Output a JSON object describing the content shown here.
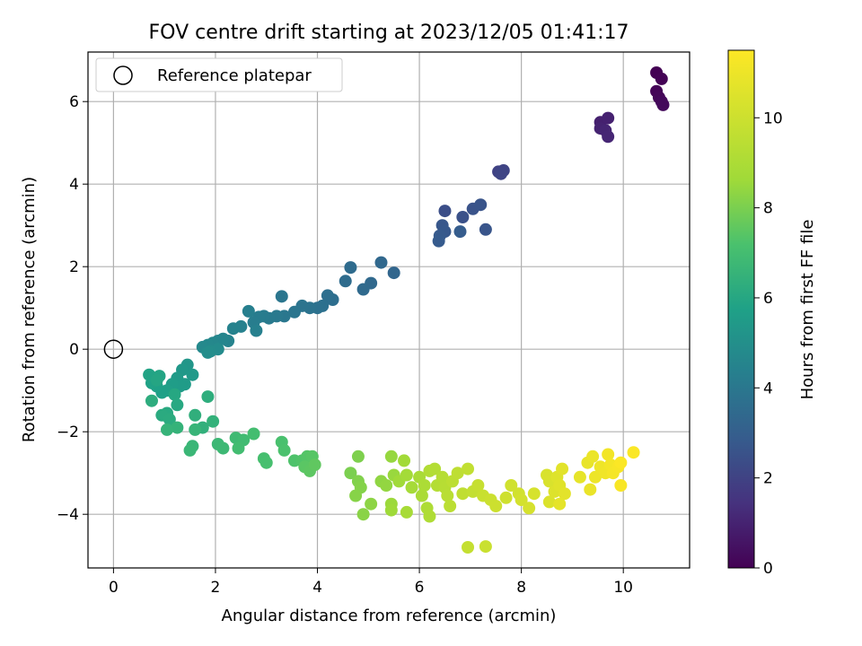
{
  "chart_data": {
    "type": "scatter",
    "title": "FOV centre drift starting at 2023/12/05 01:41:17",
    "xlabel": "Angular distance from reference (arcmin)",
    "ylabel": "Rotation from reference (arcmin)",
    "xlim": [
      -0.5,
      11.3
    ],
    "ylim": [
      -5.3,
      7.2
    ],
    "xticks": [
      0,
      2,
      4,
      6,
      8,
      10
    ],
    "yticks": [
      -4,
      -2,
      0,
      2,
      4,
      6
    ],
    "grid": true,
    "legend": {
      "placement": "top-left",
      "entries": [
        "Reference platepar"
      ]
    },
    "reference_point": {
      "x": 0,
      "y": 0,
      "label": "Reference platepar"
    },
    "colorbar": {
      "label": "Hours from first FF file",
      "colormap": "viridis",
      "range": [
        0,
        11.5
      ],
      "ticks": [
        0,
        2,
        4,
        6,
        8,
        10
      ]
    },
    "series": [
      {
        "points": [
          {
            "x": 10.65,
            "y": 6.7,
            "h": 0.0
          },
          {
            "x": 10.75,
            "y": 6.55,
            "h": 0.05
          },
          {
            "x": 10.65,
            "y": 6.25,
            "h": 0.1
          },
          {
            "x": 10.7,
            "y": 6.1,
            "h": 0.15
          },
          {
            "x": 10.75,
            "y": 6.0,
            "h": 0.2
          },
          {
            "x": 10.78,
            "y": 5.92,
            "h": 0.25
          },
          {
            "x": 9.55,
            "y": 5.5,
            "h": 0.9
          },
          {
            "x": 9.7,
            "y": 5.6,
            "h": 0.95
          },
          {
            "x": 9.55,
            "y": 5.35,
            "h": 1.0
          },
          {
            "x": 9.65,
            "y": 5.3,
            "h": 1.05
          },
          {
            "x": 9.7,
            "y": 5.15,
            "h": 1.1
          },
          {
            "x": 7.55,
            "y": 4.3,
            "h": 2.0
          },
          {
            "x": 7.65,
            "y": 4.33,
            "h": 2.05
          },
          {
            "x": 7.6,
            "y": 4.25,
            "h": 2.1
          },
          {
            "x": 6.5,
            "y": 3.35,
            "h": 2.4
          },
          {
            "x": 6.85,
            "y": 3.2,
            "h": 2.5
          },
          {
            "x": 7.05,
            "y": 3.4,
            "h": 2.55
          },
          {
            "x": 7.2,
            "y": 3.5,
            "h": 2.6
          },
          {
            "x": 7.3,
            "y": 2.9,
            "h": 2.65
          },
          {
            "x": 6.45,
            "y": 3.0,
            "h": 2.7
          },
          {
            "x": 6.5,
            "y": 2.85,
            "h": 2.75
          },
          {
            "x": 6.4,
            "y": 2.75,
            "h": 2.8
          },
          {
            "x": 6.38,
            "y": 2.62,
            "h": 2.85
          },
          {
            "x": 6.8,
            "y": 2.85,
            "h": 2.9
          },
          {
            "x": 5.5,
            "y": 1.85,
            "h": 3.3
          },
          {
            "x": 5.25,
            "y": 2.1,
            "h": 3.35
          },
          {
            "x": 5.05,
            "y": 1.6,
            "h": 3.4
          },
          {
            "x": 4.9,
            "y": 1.45,
            "h": 3.45
          },
          {
            "x": 4.65,
            "y": 1.98,
            "h": 3.5
          },
          {
            "x": 4.55,
            "y": 1.65,
            "h": 3.55
          },
          {
            "x": 4.3,
            "y": 1.2,
            "h": 3.6
          },
          {
            "x": 4.2,
            "y": 1.3,
            "h": 3.65
          },
          {
            "x": 4.1,
            "y": 1.05,
            "h": 3.7
          },
          {
            "x": 4.0,
            "y": 1.0,
            "h": 3.75
          },
          {
            "x": 3.85,
            "y": 1.0,
            "h": 3.8
          },
          {
            "x": 3.7,
            "y": 1.05,
            "h": 3.85
          },
          {
            "x": 3.55,
            "y": 0.9,
            "h": 3.9
          },
          {
            "x": 3.3,
            "y": 1.28,
            "h": 3.95
          },
          {
            "x": 3.35,
            "y": 0.8,
            "h": 4.0
          },
          {
            "x": 3.2,
            "y": 0.8,
            "h": 4.05
          },
          {
            "x": 3.05,
            "y": 0.75,
            "h": 4.1
          },
          {
            "x": 2.95,
            "y": 0.8,
            "h": 4.15
          },
          {
            "x": 2.85,
            "y": 0.78,
            "h": 4.2
          },
          {
            "x": 2.75,
            "y": 0.65,
            "h": 4.25
          },
          {
            "x": 2.65,
            "y": 0.92,
            "h": 4.3
          },
          {
            "x": 2.8,
            "y": 0.45,
            "h": 4.35
          },
          {
            "x": 2.5,
            "y": 0.55,
            "h": 4.4
          },
          {
            "x": 2.35,
            "y": 0.5,
            "h": 4.45
          },
          {
            "x": 2.25,
            "y": 0.2,
            "h": 4.5
          },
          {
            "x": 2.15,
            "y": 0.25,
            "h": 4.55
          },
          {
            "x": 2.05,
            "y": 0.2,
            "h": 4.6
          },
          {
            "x": 1.95,
            "y": 0.15,
            "h": 4.65
          },
          {
            "x": 1.85,
            "y": 0.1,
            "h": 4.7
          },
          {
            "x": 1.75,
            "y": 0.05,
            "h": 4.75
          },
          {
            "x": 2.05,
            "y": 0.0,
            "h": 4.8
          },
          {
            "x": 1.9,
            "y": -0.05,
            "h": 4.85
          },
          {
            "x": 1.85,
            "y": -0.08,
            "h": 4.9
          },
          {
            "x": 1.45,
            "y": -0.38,
            "h": 5.3
          },
          {
            "x": 1.35,
            "y": -0.5,
            "h": 5.35
          },
          {
            "x": 1.55,
            "y": -0.62,
            "h": 5.4
          },
          {
            "x": 1.25,
            "y": -0.7,
            "h": 5.45
          },
          {
            "x": 1.4,
            "y": -0.85,
            "h": 5.5
          },
          {
            "x": 1.3,
            "y": -0.9,
            "h": 5.55
          },
          {
            "x": 1.15,
            "y": -0.85,
            "h": 5.6
          },
          {
            "x": 1.05,
            "y": -1.0,
            "h": 5.65
          },
          {
            "x": 0.95,
            "y": -1.05,
            "h": 5.7
          },
          {
            "x": 0.85,
            "y": -0.9,
            "h": 5.75
          },
          {
            "x": 0.75,
            "y": -0.82,
            "h": 5.8
          },
          {
            "x": 0.7,
            "y": -0.62,
            "h": 5.85
          },
          {
            "x": 0.9,
            "y": -0.65,
            "h": 5.9
          },
          {
            "x": 0.85,
            "y": -0.75,
            "h": 5.95
          },
          {
            "x": 1.2,
            "y": -1.1,
            "h": 6.0
          },
          {
            "x": 1.25,
            "y": -1.35,
            "h": 6.05
          },
          {
            "x": 1.05,
            "y": -1.55,
            "h": 6.1
          },
          {
            "x": 0.95,
            "y": -1.6,
            "h": 6.15
          },
          {
            "x": 1.1,
            "y": -1.7,
            "h": 6.2
          },
          {
            "x": 0.75,
            "y": -1.25,
            "h": 6.25
          },
          {
            "x": 1.85,
            "y": -1.15,
            "h": 6.3
          },
          {
            "x": 1.6,
            "y": -1.6,
            "h": 6.35
          },
          {
            "x": 1.75,
            "y": -1.9,
            "h": 6.4
          },
          {
            "x": 1.95,
            "y": -1.75,
            "h": 6.45
          },
          {
            "x": 1.25,
            "y": -1.9,
            "h": 6.5
          },
          {
            "x": 1.05,
            "y": -1.95,
            "h": 6.55
          },
          {
            "x": 1.6,
            "y": -1.95,
            "h": 6.6
          },
          {
            "x": 1.55,
            "y": -2.35,
            "h": 6.65
          },
          {
            "x": 1.5,
            "y": -2.45,
            "h": 6.7
          },
          {
            "x": 2.05,
            "y": -2.3,
            "h": 6.75
          },
          {
            "x": 2.15,
            "y": -2.4,
            "h": 6.8
          },
          {
            "x": 2.4,
            "y": -2.15,
            "h": 6.85
          },
          {
            "x": 2.55,
            "y": -2.2,
            "h": 6.9
          },
          {
            "x": 2.45,
            "y": -2.4,
            "h": 6.95
          },
          {
            "x": 2.75,
            "y": -2.05,
            "h": 7.0
          },
          {
            "x": 2.95,
            "y": -2.65,
            "h": 7.05
          },
          {
            "x": 3.0,
            "y": -2.75,
            "h": 7.1
          },
          {
            "x": 3.3,
            "y": -2.25,
            "h": 7.15
          },
          {
            "x": 3.35,
            "y": -2.45,
            "h": 7.2
          },
          {
            "x": 3.55,
            "y": -2.7,
            "h": 7.25
          },
          {
            "x": 3.7,
            "y": -2.7,
            "h": 7.3
          },
          {
            "x": 3.8,
            "y": -2.6,
            "h": 7.35
          },
          {
            "x": 3.9,
            "y": -2.6,
            "h": 7.4
          },
          {
            "x": 3.75,
            "y": -2.85,
            "h": 7.45
          },
          {
            "x": 3.85,
            "y": -2.95,
            "h": 7.5
          },
          {
            "x": 3.95,
            "y": -2.8,
            "h": 7.55
          },
          {
            "x": 4.65,
            "y": -3.0,
            "h": 8.0
          },
          {
            "x": 4.8,
            "y": -2.6,
            "h": 8.05
          },
          {
            "x": 4.8,
            "y": -3.2,
            "h": 8.1
          },
          {
            "x": 4.85,
            "y": -3.35,
            "h": 8.15
          },
          {
            "x": 4.75,
            "y": -3.55,
            "h": 8.2
          },
          {
            "x": 4.9,
            "y": -4.0,
            "h": 8.25
          },
          {
            "x": 5.05,
            "y": -3.75,
            "h": 8.3
          },
          {
            "x": 5.25,
            "y": -3.2,
            "h": 8.35
          },
          {
            "x": 5.35,
            "y": -3.3,
            "h": 8.4
          },
          {
            "x": 5.45,
            "y": -2.6,
            "h": 8.45
          },
          {
            "x": 5.5,
            "y": -3.05,
            "h": 8.5
          },
          {
            "x": 5.45,
            "y": -3.75,
            "h": 8.55
          },
          {
            "x": 5.45,
            "y": -3.9,
            "h": 8.6
          },
          {
            "x": 5.6,
            "y": -3.2,
            "h": 8.65
          },
          {
            "x": 5.7,
            "y": -2.7,
            "h": 8.7
          },
          {
            "x": 5.75,
            "y": -3.05,
            "h": 8.75
          },
          {
            "x": 5.85,
            "y": -3.35,
            "h": 8.8
          },
          {
            "x": 5.75,
            "y": -3.95,
            "h": 8.85
          },
          {
            "x": 6.0,
            "y": -3.1,
            "h": 8.9
          },
          {
            "x": 6.05,
            "y": -3.55,
            "h": 8.95
          },
          {
            "x": 6.1,
            "y": -3.3,
            "h": 9.0
          },
          {
            "x": 6.15,
            "y": -3.85,
            "h": 9.05
          },
          {
            "x": 6.2,
            "y": -4.05,
            "h": 9.1
          },
          {
            "x": 6.2,
            "y": -2.95,
            "h": 9.15
          },
          {
            "x": 6.3,
            "y": -2.9,
            "h": 9.2
          },
          {
            "x": 6.35,
            "y": -3.3,
            "h": 9.25
          },
          {
            "x": 6.45,
            "y": -3.1,
            "h": 9.3
          },
          {
            "x": 6.5,
            "y": -3.35,
            "h": 9.35
          },
          {
            "x": 6.55,
            "y": -3.55,
            "h": 9.4
          },
          {
            "x": 6.6,
            "y": -3.8,
            "h": 9.45
          },
          {
            "x": 6.65,
            "y": -3.2,
            "h": 9.5
          },
          {
            "x": 6.75,
            "y": -3.0,
            "h": 9.55
          },
          {
            "x": 6.85,
            "y": -3.5,
            "h": 9.6
          },
          {
            "x": 6.95,
            "y": -2.9,
            "h": 9.65
          },
          {
            "x": 7.05,
            "y": -3.45,
            "h": 9.7
          },
          {
            "x": 6.95,
            "y": -4.8,
            "h": 9.75
          },
          {
            "x": 7.15,
            "y": -3.3,
            "h": 9.8
          },
          {
            "x": 7.25,
            "y": -3.55,
            "h": 9.85
          },
          {
            "x": 7.3,
            "y": -4.78,
            "h": 9.9
          },
          {
            "x": 7.4,
            "y": -3.65,
            "h": 9.95
          },
          {
            "x": 7.5,
            "y": -3.8,
            "h": 10.0
          },
          {
            "x": 7.7,
            "y": -3.6,
            "h": 10.05
          },
          {
            "x": 7.8,
            "y": -3.3,
            "h": 10.1
          },
          {
            "x": 7.95,
            "y": -3.5,
            "h": 10.15
          },
          {
            "x": 8.0,
            "y": -3.65,
            "h": 10.2
          },
          {
            "x": 8.15,
            "y": -3.85,
            "h": 10.25
          },
          {
            "x": 8.25,
            "y": -3.5,
            "h": 10.3
          },
          {
            "x": 8.5,
            "y": -3.05,
            "h": 10.35
          },
          {
            "x": 8.55,
            "y": -3.2,
            "h": 10.4
          },
          {
            "x": 8.55,
            "y": -3.7,
            "h": 10.45
          },
          {
            "x": 8.65,
            "y": -3.45,
            "h": 10.5
          },
          {
            "x": 8.7,
            "y": -3.1,
            "h": 10.55
          },
          {
            "x": 8.75,
            "y": -3.3,
            "h": 10.6
          },
          {
            "x": 8.8,
            "y": -2.9,
            "h": 10.65
          },
          {
            "x": 8.85,
            "y": -3.5,
            "h": 10.7
          },
          {
            "x": 8.75,
            "y": -3.75,
            "h": 10.75
          },
          {
            "x": 9.15,
            "y": -3.1,
            "h": 10.8
          },
          {
            "x": 9.3,
            "y": -2.75,
            "h": 10.85
          },
          {
            "x": 9.35,
            "y": -3.4,
            "h": 10.9
          },
          {
            "x": 9.4,
            "y": -2.6,
            "h": 10.95
          },
          {
            "x": 9.45,
            "y": -3.1,
            "h": 11.0
          },
          {
            "x": 9.55,
            "y": -2.85,
            "h": 11.05
          },
          {
            "x": 9.65,
            "y": -3.0,
            "h": 11.1
          },
          {
            "x": 9.7,
            "y": -2.55,
            "h": 11.15
          },
          {
            "x": 9.75,
            "y": -2.8,
            "h": 11.2
          },
          {
            "x": 9.8,
            "y": -3.0,
            "h": 11.25
          },
          {
            "x": 9.9,
            "y": -2.85,
            "h": 11.3
          },
          {
            "x": 9.95,
            "y": -3.3,
            "h": 11.35
          },
          {
            "x": 10.2,
            "y": -2.5,
            "h": 11.4
          },
          {
            "x": 9.95,
            "y": -2.75,
            "h": 11.45
          }
        ]
      }
    ]
  }
}
